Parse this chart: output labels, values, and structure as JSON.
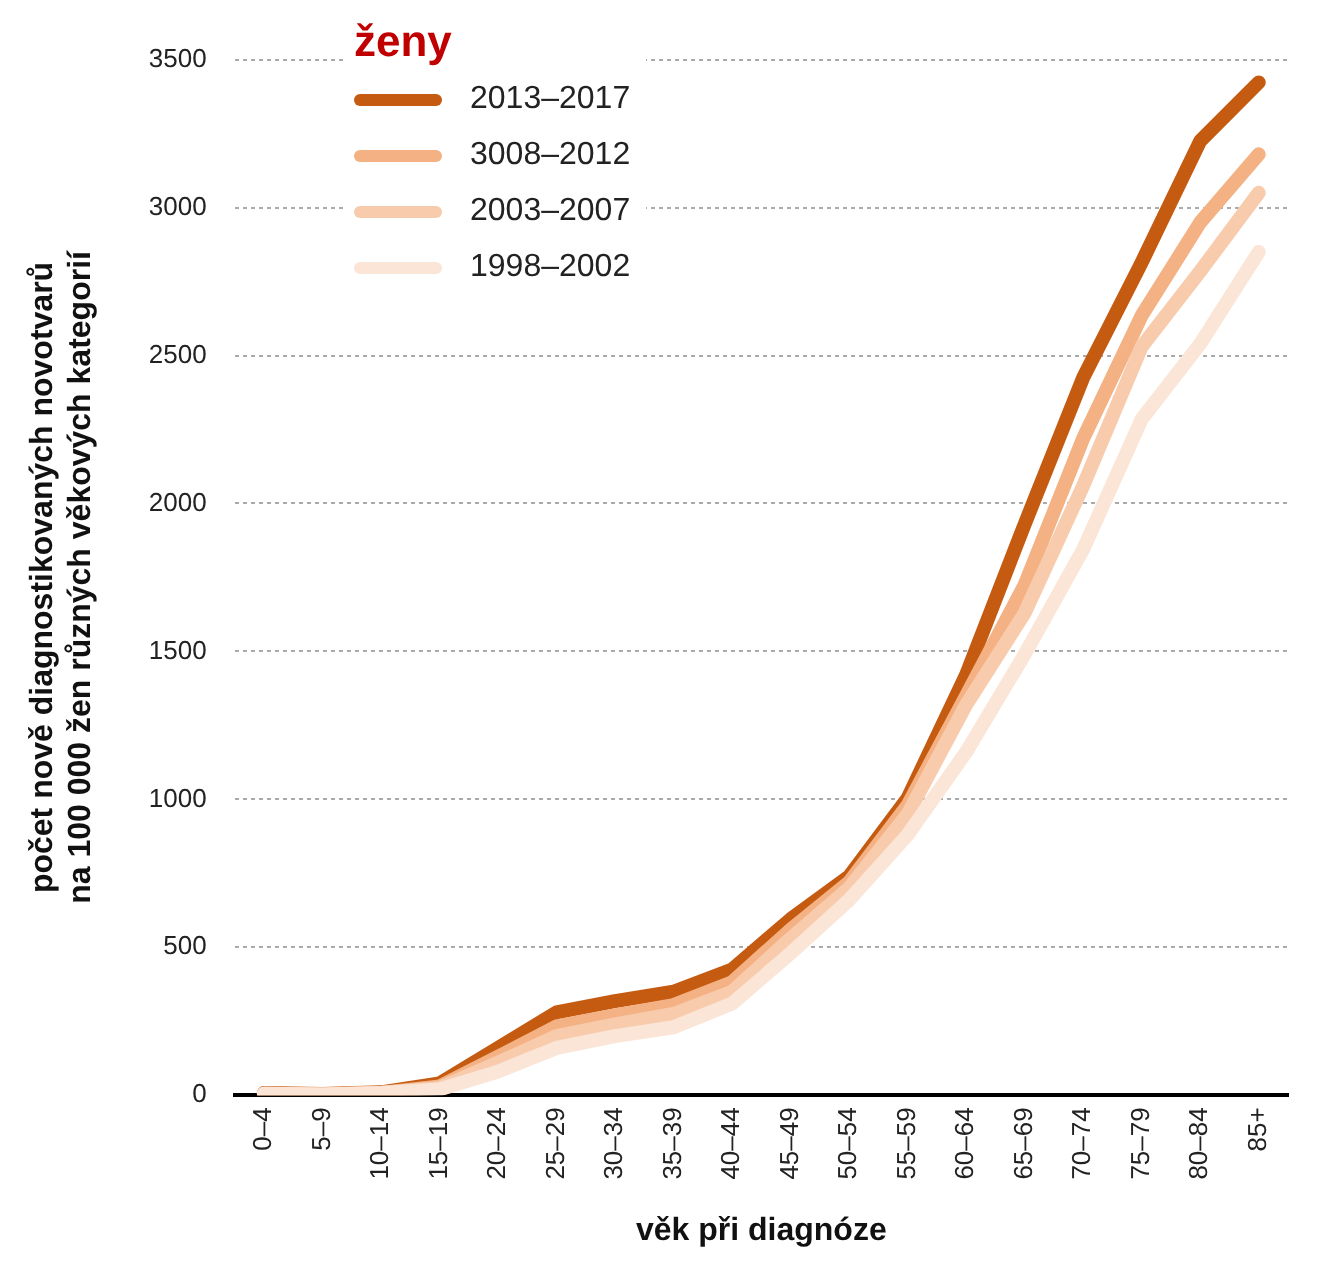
{
  "chart_data": {
    "type": "line",
    "xlabel": "věk při diagnóze",
    "ylabel": "počet nově diagnostikovaných novotvarů\nna 100 000 žen různých věkových kategorií",
    "legend_title": "ženy",
    "legend": "top left",
    "grid": "y",
    "marker": "none",
    "line_style": "solid",
    "categories": [
      "0–4",
      "5–9",
      "10–14",
      "15–19",
      "20–24",
      "25–29",
      "30–34",
      "35–39",
      "40–44",
      "45–49",
      "50–54",
      "55–59",
      "60–64",
      "65–69",
      "70–74",
      "75–79",
      "80–84",
      "85+"
    ],
    "ylim": [
      0,
      3500
    ],
    "yticks": [
      0,
      500,
      1000,
      1500,
      2000,
      2500,
      3000,
      3500
    ],
    "series": [
      {
        "name": "1998–2002",
        "color": "#fbe5d6",
        "values": [
          5,
          3,
          8,
          20,
          80,
          160,
          200,
          230,
          310,
          480,
          660,
          880,
          1160,
          1490,
          1845,
          2285,
          2540,
          2850
        ]
      },
      {
        "name": "2003–2007",
        "color": "#f8cbad",
        "values": [
          5,
          3,
          8,
          25,
          110,
          200,
          240,
          275,
          350,
          530,
          700,
          950,
          1320,
          1630,
          2060,
          2530,
          2785,
          3050
        ]
      },
      {
        "name": "3008–2012",
        "color": "#f4b183",
        "values": [
          5,
          3,
          8,
          30,
          130,
          233,
          270,
          305,
          382,
          560,
          720,
          980,
          1350,
          1725,
          2220,
          2635,
          2950,
          3180
        ]
      },
      {
        "name": "2013–2017",
        "color": "#c55a11",
        "values": [
          8,
          4,
          10,
          40,
          160,
          280,
          318,
          350,
          425,
          595,
          740,
          1004,
          1421,
          1930,
          2425,
          2815,
          3225,
          3423
        ]
      }
    ]
  }
}
